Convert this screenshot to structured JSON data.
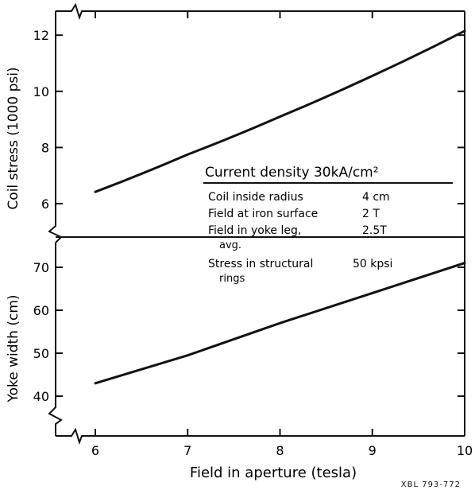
{
  "chart_data": [
    {
      "type": "line",
      "ylabel": "Coil stress (1000 psi)",
      "xlabel": "",
      "xlim": [
        5.7,
        10
      ],
      "ylim": [
        5,
        13
      ],
      "yticks": [
        6,
        8,
        10,
        12
      ],
      "axis_break": "bottom-left",
      "x": [
        6,
        7,
        8,
        9,
        10
      ],
      "values": [
        6.42,
        7.75,
        9.1,
        10.55,
        12.15
      ]
    },
    {
      "type": "line",
      "ylabel": "Yoke width (cm)",
      "xlabel": "Field in aperture (tesla)",
      "xlim": [
        5.7,
        10
      ],
      "ylim": [
        35,
        75
      ],
      "xticks": [
        6,
        7,
        8,
        9,
        10
      ],
      "yticks": [
        40,
        50,
        60,
        70
      ],
      "axis_break": "top-left",
      "x": [
        6,
        7,
        8,
        9,
        10
      ],
      "values": [
        43,
        49.5,
        57,
        64,
        71
      ]
    }
  ],
  "legend": {
    "heading": "Current density  30kA/cm²",
    "rows": [
      {
        "label": "Coil inside radius",
        "value": "4   cm"
      },
      {
        "label": "Field at iron surface",
        "value": "2   T"
      },
      {
        "label": "Field in yoke leg,",
        "value": "2.5T"
      },
      {
        "label": "avg.",
        "value": ""
      },
      {
        "label": "Stress in structural",
        "value": "50  kpsi"
      },
      {
        "label": "rings",
        "value": ""
      }
    ]
  },
  "stamp": "XBL 793-772"
}
